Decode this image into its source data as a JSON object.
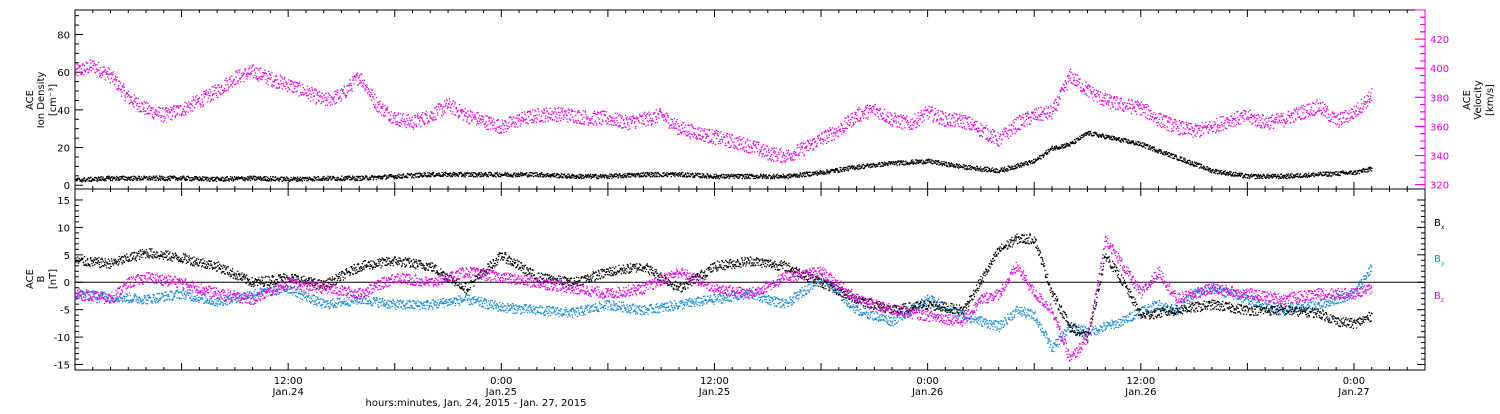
{
  "colors": {
    "density": "#000000",
    "velocity": "#e600e6",
    "bx": "#000000",
    "by": "#1a8ad4",
    "bz": "#e600e6"
  },
  "xaxis": {
    "title": "hours:minutes, Jan. 24, 2015 - Jan. 27, 2015",
    "tick_labels": [
      {
        "t": 12,
        "top": "12:00",
        "bottom": "Jan.24"
      },
      {
        "t": 24,
        "top": "0:00",
        "bottom": "Jan.25"
      },
      {
        "t": 36,
        "top": "12:00",
        "bottom": "Jan.25"
      },
      {
        "t": 48,
        "top": "0:00",
        "bottom": "Jan.26"
      },
      {
        "t": 60,
        "top": "12:00",
        "bottom": "Jan.26"
      },
      {
        "t": 72,
        "top": "0:00",
        "bottom": "Jan.27"
      }
    ]
  },
  "chart_data": [
    {
      "type": "scatter",
      "panel": "plasma",
      "ylabel_left": [
        "ACE",
        "Ion Density",
        "[cm⁻³]"
      ],
      "ylabel_right": [
        "ACE",
        "Velocity",
        "[km/s]"
      ],
      "xlim_hours": [
        0,
        76
      ],
      "ylim_left": [
        -2,
        93
      ],
      "yticks_left": [
        0,
        20,
        40,
        60,
        80
      ],
      "ylim_right": [
        317,
        440
      ],
      "yticks_right": [
        320,
        340,
        360,
        380,
        400,
        420
      ],
      "series": [
        {
          "axis": "left",
          "points": [
            [
              0,
              3
            ],
            [
              2,
              4
            ],
            [
              4,
              4
            ],
            [
              6,
              4
            ],
            [
              8,
              3.5
            ],
            [
              10,
              4
            ],
            [
              12,
              3.5
            ],
            [
              14,
              4
            ],
            [
              16,
              4
            ],
            [
              18,
              5
            ],
            [
              20,
              6
            ],
            [
              22,
              6
            ],
            [
              24,
              6
            ],
            [
              26,
              6
            ],
            [
              28,
              5
            ],
            [
              30,
              5
            ],
            [
              32,
              6
            ],
            [
              34,
              6
            ],
            [
              36,
              5
            ],
            [
              38,
              5
            ],
            [
              40,
              5
            ],
            [
              42,
              7
            ],
            [
              44,
              10
            ],
            [
              46,
              12
            ],
            [
              48,
              13
            ],
            [
              50,
              10
            ],
            [
              52,
              8
            ],
            [
              54,
              13
            ],
            [
              55,
              20
            ],
            [
              56,
              22
            ],
            [
              57,
              28
            ],
            [
              58,
              26
            ],
            [
              60,
              22
            ],
            [
              62,
              15
            ],
            [
              64,
              8
            ],
            [
              66,
              5
            ],
            [
              68,
              5
            ],
            [
              70,
              6
            ],
            [
              72,
              7
            ],
            [
              73,
              9
            ]
          ]
        },
        {
          "axis": "right",
          "points": [
            [
              0,
              398
            ],
            [
              1,
              402
            ],
            [
              2,
              395
            ],
            [
              3,
              380
            ],
            [
              4,
              372
            ],
            [
              5,
              368
            ],
            [
              6,
              372
            ],
            [
              7,
              378
            ],
            [
              8,
              385
            ],
            [
              9,
              394
            ],
            [
              10,
              398
            ],
            [
              11,
              393
            ],
            [
              12,
              389
            ],
            [
              13,
              384
            ],
            [
              14,
              378
            ],
            [
              15,
              382
            ],
            [
              16,
              395
            ],
            [
              17,
              375
            ],
            [
              18,
              366
            ],
            [
              19,
              363
            ],
            [
              20,
              368
            ],
            [
              21,
              375
            ],
            [
              22,
              368
            ],
            [
              23,
              364
            ],
            [
              24,
              360
            ],
            [
              25,
              365
            ],
            [
              26,
              368
            ],
            [
              27,
              369
            ],
            [
              28,
              368
            ],
            [
              29,
              366
            ],
            [
              30,
              366
            ],
            [
              31,
              363
            ],
            [
              32,
              365
            ],
            [
              33,
              368
            ],
            [
              34,
              359
            ],
            [
              35,
              356
            ],
            [
              36,
              353
            ],
            [
              37,
              350
            ],
            [
              38,
              347
            ],
            [
              39,
              342
            ],
            [
              40,
              340
            ],
            [
              41,
              345
            ],
            [
              42,
              352
            ],
            [
              43,
              358
            ],
            [
              44,
              368
            ],
            [
              45,
              372
            ],
            [
              46,
              365
            ],
            [
              47,
              362
            ],
            [
              48,
              370
            ],
            [
              49,
              365
            ],
            [
              50,
              364
            ],
            [
              51,
              358
            ],
            [
              52,
              351
            ],
            [
              53,
              362
            ],
            [
              54,
              368
            ],
            [
              55,
              370
            ],
            [
              56,
              395
            ],
            [
              57,
              385
            ],
            [
              58,
              378
            ],
            [
              59,
              375
            ],
            [
              60,
              373
            ],
            [
              61,
              365
            ],
            [
              62,
              360
            ],
            [
              63,
              357
            ],
            [
              64,
              360
            ],
            [
              65,
              365
            ],
            [
              66,
              367
            ],
            [
              67,
              363
            ],
            [
              68,
              365
            ],
            [
              69,
              370
            ],
            [
              70,
              374
            ],
            [
              71,
              364
            ],
            [
              72,
              370
            ],
            [
              73,
              382
            ]
          ]
        }
      ]
    },
    {
      "type": "scatter",
      "panel": "magnetic",
      "ylabel_left": [
        "ACE",
        "B",
        "[nT]"
      ],
      "xlim_hours": [
        0,
        76
      ],
      "ylim": [
        -16,
        17
      ],
      "yticks": [
        -15,
        -10,
        -5,
        0,
        5,
        10,
        15
      ],
      "zero_line": true,
      "legend": [
        {
          "key": "Bx",
          "main": "B",
          "sub": "x",
          "color": "#000000"
        },
        {
          "key": "By",
          "main": "B",
          "sub": "y",
          "color": "#1a8ad4"
        },
        {
          "key": "Bz",
          "main": "B",
          "sub": "z",
          "color": "#e600e6"
        }
      ],
      "series": [
        {
          "name": "Bx",
          "points": [
            [
              0,
              4
            ],
            [
              2,
              3.5
            ],
            [
              4,
              5.5
            ],
            [
              6,
              4.5
            ],
            [
              8,
              3
            ],
            [
              10,
              0
            ],
            [
              12,
              1
            ],
            [
              14,
              -0.5
            ],
            [
              16,
              3
            ],
            [
              18,
              4
            ],
            [
              20,
              3
            ],
            [
              22,
              -1
            ],
            [
              24,
              5
            ],
            [
              26,
              1
            ],
            [
              28,
              0
            ],
            [
              30,
              2
            ],
            [
              32,
              3
            ],
            [
              34,
              -1
            ],
            [
              36,
              3
            ],
            [
              38,
              4
            ],
            [
              40,
              3
            ],
            [
              42,
              0
            ],
            [
              44,
              -3
            ],
            [
              46,
              -5
            ],
            [
              48,
              -4
            ],
            [
              50,
              -5
            ],
            [
              52,
              6
            ],
            [
              53,
              8
            ],
            [
              54,
              8
            ],
            [
              55,
              -2
            ],
            [
              56,
              -8
            ],
            [
              57,
              -10
            ],
            [
              58,
              5
            ],
            [
              59,
              0
            ],
            [
              60,
              -6
            ],
            [
              62,
              -5
            ],
            [
              64,
              -4
            ],
            [
              66,
              -5
            ],
            [
              68,
              -5
            ],
            [
              70,
              -5.5
            ],
            [
              71,
              -7
            ],
            [
              72,
              -7.5
            ],
            [
              73,
              -6
            ]
          ]
        },
        {
          "name": "By",
          "points": [
            [
              0,
              -2
            ],
            [
              2,
              -2.5
            ],
            [
              4,
              -3
            ],
            [
              6,
              -2
            ],
            [
              8,
              -3.5
            ],
            [
              10,
              -2
            ],
            [
              12,
              -1
            ],
            [
              14,
              -4
            ],
            [
              16,
              -3
            ],
            [
              18,
              -4
            ],
            [
              20,
              -4
            ],
            [
              22,
              -3
            ],
            [
              24,
              -4.5
            ],
            [
              26,
              -5
            ],
            [
              28,
              -5.5
            ],
            [
              30,
              -4
            ],
            [
              32,
              -5
            ],
            [
              34,
              -4
            ],
            [
              36,
              -3
            ],
            [
              38,
              -2
            ],
            [
              40,
              -4
            ],
            [
              42,
              1
            ],
            [
              44,
              -5
            ],
            [
              46,
              -7
            ],
            [
              48,
              -3
            ],
            [
              50,
              -6
            ],
            [
              52,
              -8
            ],
            [
              53,
              -5
            ],
            [
              54,
              -6
            ],
            [
              55,
              -12
            ],
            [
              56,
              -8
            ],
            [
              57,
              -9
            ],
            [
              58,
              -8
            ],
            [
              59,
              -7
            ],
            [
              60,
              -5
            ],
            [
              61,
              -4
            ],
            [
              62,
              -5
            ],
            [
              63,
              -2
            ],
            [
              64,
              -1
            ],
            [
              66,
              -3
            ],
            [
              68,
              -5
            ],
            [
              70,
              -4
            ],
            [
              72,
              -2
            ],
            [
              73,
              3
            ]
          ]
        },
        {
          "name": "Bz",
          "points": [
            [
              0,
              -2
            ],
            [
              2,
              -3
            ],
            [
              3,
              0
            ],
            [
              4,
              1
            ],
            [
              6,
              0
            ],
            [
              8,
              -2
            ],
            [
              10,
              -3
            ],
            [
              12,
              0
            ],
            [
              14,
              -1
            ],
            [
              16,
              -2
            ],
            [
              18,
              1
            ],
            [
              20,
              0
            ],
            [
              22,
              2
            ],
            [
              24,
              1
            ],
            [
              26,
              0
            ],
            [
              28,
              -1
            ],
            [
              30,
              -2
            ],
            [
              32,
              -1
            ],
            [
              34,
              2
            ],
            [
              36,
              -1
            ],
            [
              38,
              -2
            ],
            [
              40,
              1
            ],
            [
              42,
              2
            ],
            [
              44,
              -3
            ],
            [
              46,
              -5
            ],
            [
              48,
              -6
            ],
            [
              50,
              -7
            ],
            [
              51,
              -3
            ],
            [
              52,
              -2
            ],
            [
              53,
              3
            ],
            [
              54,
              -2
            ],
            [
              55,
              -5
            ],
            [
              56,
              -14
            ],
            [
              57,
              -10
            ],
            [
              58,
              8
            ],
            [
              59,
              3
            ],
            [
              60,
              -2
            ],
            [
              61,
              2
            ],
            [
              62,
              -3
            ],
            [
              63,
              -2
            ],
            [
              64,
              -1
            ],
            [
              66,
              -2
            ],
            [
              68,
              -3
            ],
            [
              70,
              -2
            ],
            [
              72,
              -2
            ],
            [
              73,
              -1
            ]
          ]
        }
      ]
    }
  ]
}
